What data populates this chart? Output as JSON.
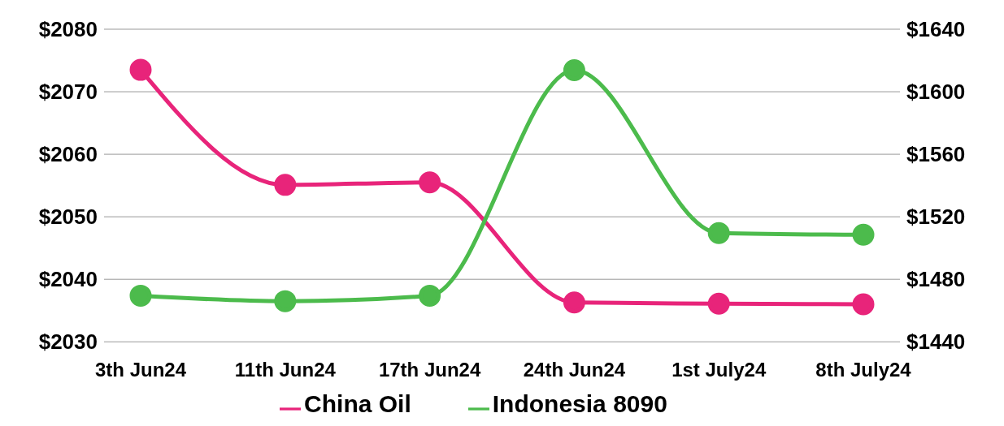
{
  "chart_data": {
    "type": "line",
    "categories": [
      "3th Jun24",
      "11th Jun24",
      "17th Jun24",
      "24th Jun24",
      "1st July24",
      "8th July24"
    ],
    "series": [
      {
        "name": "China Oil",
        "color": "#e8247a",
        "values": [
          2073.5,
          2055.1,
          2055.5,
          2036.3,
          2036.1,
          2036.0
        ]
      },
      {
        "name": "Indonesia 8090",
        "color": "#4cbb4c",
        "axis": "y2",
        "values": [
          1469.5,
          1466,
          1469.5,
          1613.8,
          1509.6,
          1508.5
        ]
      }
    ],
    "ylim": [
      2030,
      2080
    ],
    "yticks": [
      {
        "value": 2030,
        "label": "$2030"
      },
      {
        "value": 2040,
        "label": "$2040"
      },
      {
        "value": 2050,
        "label": "$2050"
      },
      {
        "value": 2060,
        "label": "$2060"
      },
      {
        "value": 2070,
        "label": "$2070"
      },
      {
        "value": 2080,
        "label": "$2080"
      }
    ],
    "y2lim": [
      1440,
      1640
    ],
    "y2ticks": [
      {
        "value": 1440,
        "label": "$1440"
      },
      {
        "value": 1480,
        "label": "$1480"
      },
      {
        "value": 1520,
        "label": "$1520"
      },
      {
        "value": 1560,
        "label": "$1560"
      },
      {
        "value": 1600,
        "label": "$1600"
      },
      {
        "value": 1640,
        "label": "$1640"
      }
    ],
    "grid": "y",
    "legend": "bottom",
    "marker": "circle",
    "line_style": "solid"
  }
}
